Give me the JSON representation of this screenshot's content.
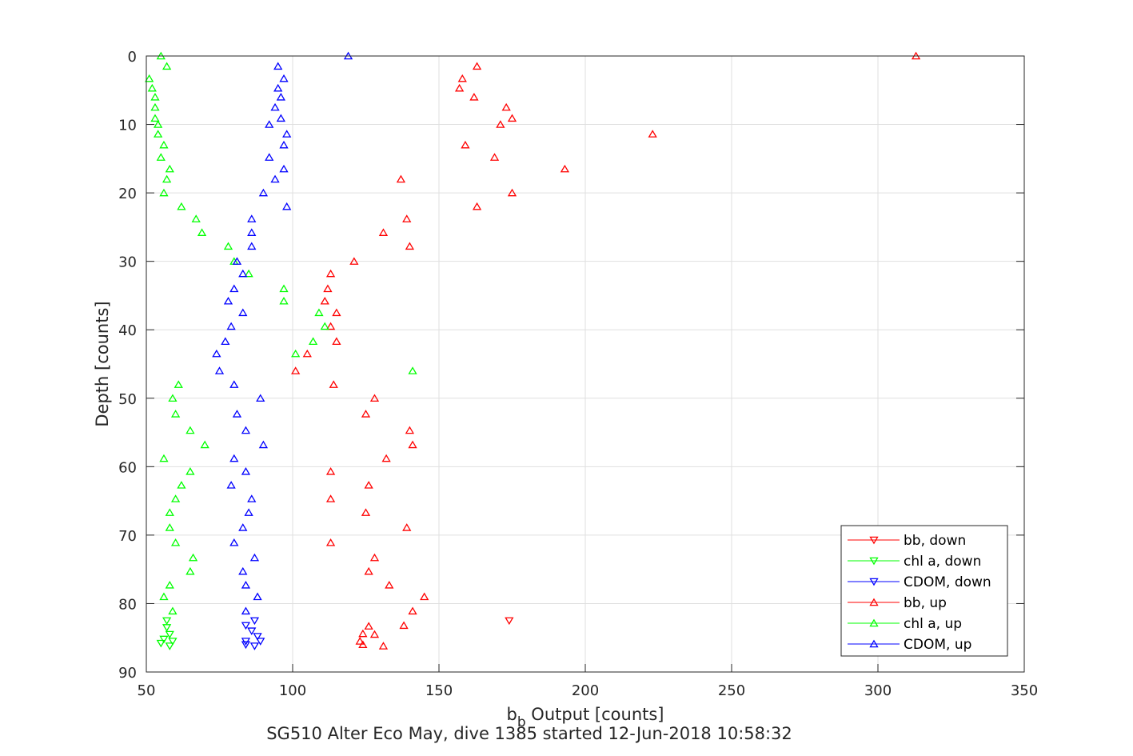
{
  "chart_data": {
    "type": "scatter",
    "xlabel_main": "b",
    "xlabel_sub": "b",
    "xlabel_rest": " Output [counts]",
    "ylabel": "Depth [counts]",
    "caption": "SG510 Alter Eco May, dive 1385 started 12-Jun-2018 10:58:32",
    "xlim": [
      50,
      350
    ],
    "ylim": [
      0,
      90
    ],
    "y_reversed": true,
    "grid": true,
    "legend_position": "bottom-right",
    "xticks": [
      50,
      100,
      150,
      200,
      250,
      300,
      350
    ],
    "yticks": [
      0,
      10,
      20,
      30,
      40,
      50,
      60,
      70,
      80,
      90
    ],
    "series": [
      {
        "name": "bb, down",
        "color": "#ff0000",
        "marker": "triangle-down",
        "points": [
          [
            174,
            82.5
          ]
        ]
      },
      {
        "name": "chl a, down",
        "color": "#00ff00",
        "marker": "triangle-down",
        "points": [
          [
            57,
            82.5
          ],
          [
            57,
            83.5
          ],
          [
            58,
            84.5
          ],
          [
            56,
            85.2
          ],
          [
            59,
            85.5
          ],
          [
            55,
            85.8
          ],
          [
            58,
            86.2
          ]
        ]
      },
      {
        "name": "CDOM, down",
        "color": "#0000ff",
        "marker": "triangle-down",
        "points": [
          [
            87,
            82.5
          ],
          [
            84,
            83.2
          ],
          [
            86,
            84
          ],
          [
            88,
            84.8
          ],
          [
            84,
            85.5
          ],
          [
            89,
            85.5
          ],
          [
            84,
            86
          ],
          [
            87,
            86.2
          ]
        ]
      },
      {
        "name": "bb, up",
        "color": "#ff0000",
        "marker": "triangle-up",
        "points": [
          [
            313,
            0
          ],
          [
            163,
            1.5
          ],
          [
            158,
            3.3
          ],
          [
            157,
            4.7
          ],
          [
            162,
            6
          ],
          [
            173,
            7.5
          ],
          [
            175,
            9.1
          ],
          [
            171,
            10
          ],
          [
            223,
            11.4
          ],
          [
            159,
            13
          ],
          [
            169,
            14.8
          ],
          [
            193,
            16.5
          ],
          [
            137,
            18
          ],
          [
            175,
            20
          ],
          [
            163,
            22
          ],
          [
            139,
            23.8
          ],
          [
            131,
            25.8
          ],
          [
            140,
            27.8
          ],
          [
            121,
            30
          ],
          [
            113,
            31.8
          ],
          [
            112,
            34
          ],
          [
            111,
            35.8
          ],
          [
            115,
            37.5
          ],
          [
            113,
            39.5
          ],
          [
            115,
            41.7
          ],
          [
            105,
            43.5
          ],
          [
            101,
            46
          ],
          [
            114,
            48
          ],
          [
            128,
            50
          ],
          [
            125,
            52.3
          ],
          [
            140,
            54.7
          ],
          [
            141,
            56.8
          ],
          [
            132,
            58.8
          ],
          [
            113,
            60.7
          ],
          [
            126,
            62.7
          ],
          [
            113,
            64.7
          ],
          [
            125,
            66.7
          ],
          [
            139,
            68.9
          ],
          [
            113,
            71.1
          ],
          [
            128,
            73.3
          ],
          [
            126,
            75.3
          ],
          [
            133,
            77.3
          ],
          [
            145,
            79
          ],
          [
            141,
            81.1
          ],
          [
            126,
            83.3
          ],
          [
            138,
            83.2
          ],
          [
            124,
            84.4
          ],
          [
            128,
            84.5
          ],
          [
            123,
            85.5
          ],
          [
            124,
            86
          ],
          [
            131,
            86.2
          ]
        ]
      },
      {
        "name": "chl a, up",
        "color": "#00ff00",
        "marker": "triangle-up",
        "points": [
          [
            55,
            0
          ],
          [
            57,
            1.5
          ],
          [
            51,
            3.3
          ],
          [
            52,
            4.7
          ],
          [
            53,
            6
          ],
          [
            53,
            7.5
          ],
          [
            53,
            9.1
          ],
          [
            54,
            10
          ],
          [
            54,
            11.4
          ],
          [
            56,
            13
          ],
          [
            55,
            14.8
          ],
          [
            58,
            16.5
          ],
          [
            57,
            18
          ],
          [
            56,
            20
          ],
          [
            62,
            22
          ],
          [
            67,
            23.8
          ],
          [
            69,
            25.8
          ],
          [
            78,
            27.8
          ],
          [
            80,
            30
          ],
          [
            85,
            31.8
          ],
          [
            97,
            34
          ],
          [
            97,
            35.8
          ],
          [
            109,
            37.5
          ],
          [
            111,
            39.5
          ],
          [
            107,
            41.7
          ],
          [
            101,
            43.5
          ],
          [
            141,
            46
          ],
          [
            61,
            48
          ],
          [
            59,
            50
          ],
          [
            60,
            52.3
          ],
          [
            65,
            54.7
          ],
          [
            70,
            56.8
          ],
          [
            56,
            58.8
          ],
          [
            65,
            60.7
          ],
          [
            62,
            62.7
          ],
          [
            60,
            64.7
          ],
          [
            58,
            66.7
          ],
          [
            58,
            68.9
          ],
          [
            60,
            71.1
          ],
          [
            66,
            73.3
          ],
          [
            65,
            75.3
          ],
          [
            58,
            77.3
          ],
          [
            56,
            79
          ],
          [
            59,
            81.1
          ]
        ]
      },
      {
        "name": "CDOM, up",
        "color": "#0000ff",
        "marker": "triangle-up",
        "points": [
          [
            119,
            0
          ],
          [
            95,
            1.5
          ],
          [
            97,
            3.3
          ],
          [
            95,
            4.7
          ],
          [
            96,
            6
          ],
          [
            94,
            7.5
          ],
          [
            96,
            9.1
          ],
          [
            92,
            10
          ],
          [
            98,
            11.4
          ],
          [
            97,
            13
          ],
          [
            92,
            14.8
          ],
          [
            97,
            16.5
          ],
          [
            94,
            18
          ],
          [
            90,
            20
          ],
          [
            98,
            22
          ],
          [
            86,
            23.8
          ],
          [
            86,
            25.8
          ],
          [
            86,
            27.8
          ],
          [
            81,
            30
          ],
          [
            83,
            31.8
          ],
          [
            80,
            34
          ],
          [
            78,
            35.8
          ],
          [
            83,
            37.5
          ],
          [
            79,
            39.5
          ],
          [
            77,
            41.7
          ],
          [
            74,
            43.5
          ],
          [
            75,
            46
          ],
          [
            80,
            48
          ],
          [
            89,
            50
          ],
          [
            81,
            52.3
          ],
          [
            84,
            54.7
          ],
          [
            90,
            56.8
          ],
          [
            80,
            58.8
          ],
          [
            84,
            60.7
          ],
          [
            79,
            62.7
          ],
          [
            86,
            64.7
          ],
          [
            85,
            66.7
          ],
          [
            83,
            68.9
          ],
          [
            80,
            71.1
          ],
          [
            87,
            73.3
          ],
          [
            83,
            75.3
          ],
          [
            84,
            77.3
          ],
          [
            88,
            79
          ],
          [
            84,
            81.1
          ]
        ]
      }
    ]
  }
}
